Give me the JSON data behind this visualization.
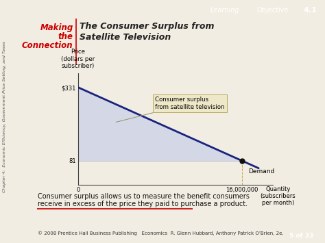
{
  "bg_color": "#f2ede2",
  "learning_obj_bg": "#1a3a6e",
  "chapter_side_text": "Chapter 4:  Economic Efficiency, Government Price Setting, and Taxes",
  "ylabel": "Price\n(dollars per\nsubscriber)",
  "price_high": 331,
  "price_low": 81,
  "qty_eq": 16000000,
  "qty_max": 19000000,
  "price_max": 380,
  "demand_label": "Demand",
  "surplus_label": "Consumer surplus\nfrom satellite television",
  "annotation_bottom_1": "Consumer surplus allows us to measure the benefit consumers",
  "annotation_bottom_2": "receive in excess of the price they paid to purchase a product.",
  "footer_text": "© 2008 Prentice Hall Business Publishing   Economics  R. Glenn Hubbard, Anthony Patrick O’Brien, 2e.",
  "footer_page": "5 of 33",
  "demand_line_color": "#1a237e",
  "surplus_fill_color": "#c8d0e8",
  "surplus_fill_alpha": 0.7,
  "arrow_color": "#999977",
  "dot_color": "#111111",
  "guide_color": "#c8a84b",
  "red_color": "#cc2222",
  "making_color": "#cc0000",
  "title_color": "#222222",
  "footer_box_color": "#c8a84b"
}
